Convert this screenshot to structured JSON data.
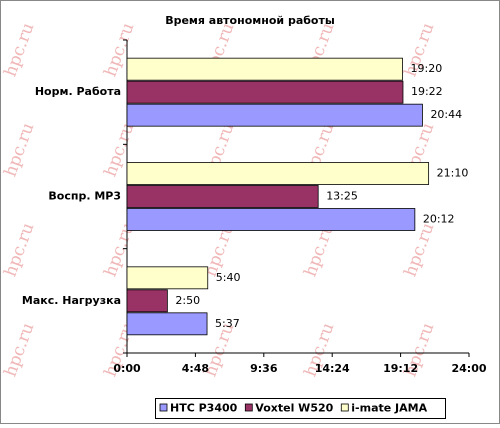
{
  "chart_data": {
    "type": "hbar",
    "title": "Время автономной работы",
    "categories": [
      "Норм. Работа",
      "Воспр. MP3",
      "Макс. Нагрузка"
    ],
    "series": [
      {
        "name": "HTC P3400",
        "color": "#9999ff",
        "values": [
          1244,
          1212,
          337
        ],
        "value_labels": [
          "20:44",
          "20:12",
          "5:37"
        ]
      },
      {
        "name": "Voxtel W520",
        "color": "#993366",
        "values": [
          1162,
          805,
          170
        ],
        "value_labels": [
          "19:22",
          "13:25",
          "2:50"
        ]
      },
      {
        "name": "i-mate JAMA",
        "color": "#ffffcc",
        "values": [
          1160,
          1270,
          340
        ],
        "value_labels": [
          "19:20",
          "21:10",
          "5:40"
        ]
      }
    ],
    "xlim": [
      0,
      1440
    ],
    "xticks": [
      {
        "value": 0,
        "label": "0:00"
      },
      {
        "value": 288,
        "label": "4:48"
      },
      {
        "value": 576,
        "label": "9:36"
      },
      {
        "value": 864,
        "label": "14:24"
      },
      {
        "value": 1152,
        "label": "19:12"
      },
      {
        "value": 1440,
        "label": "24:00"
      }
    ],
    "grid": false,
    "legend": "bottom",
    "watermark": "hpc.ru"
  }
}
